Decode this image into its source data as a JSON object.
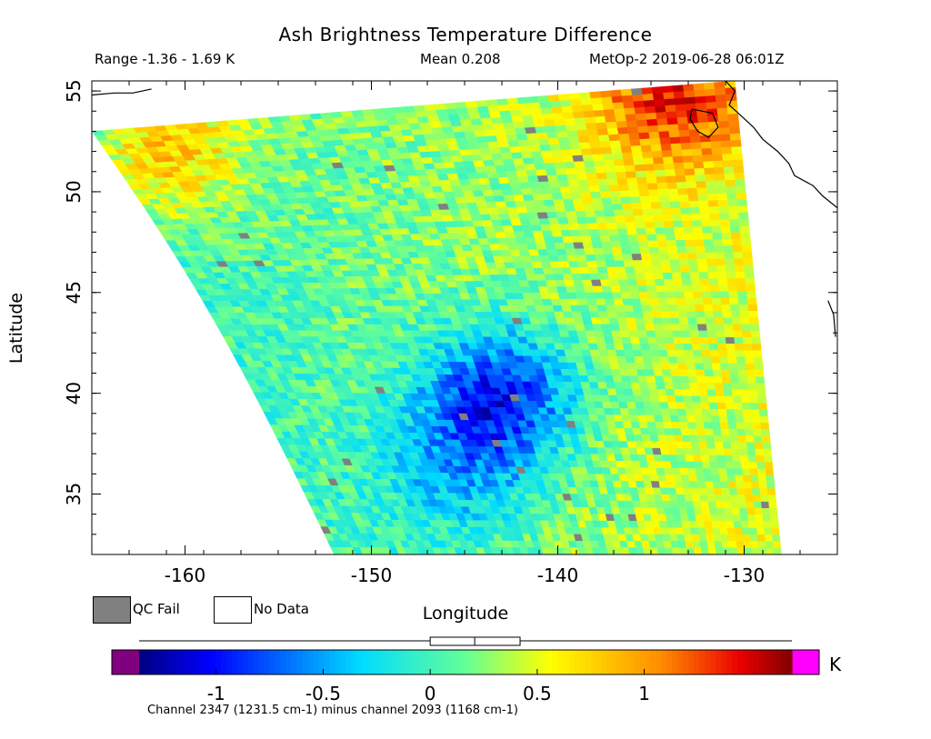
{
  "header": {
    "title": "Ash Brightness Temperature Difference",
    "range_text": "Range -1.36 - 1.69 K",
    "mean_text": "Mean 0.208",
    "stamp_text": "MetOp-2 2019-06-28 06:01Z"
  },
  "legend": {
    "qc_fail_label": "QC Fail",
    "no_data_label": "No Data",
    "qc_fail_color": "#808080",
    "no_data_color": "#ffffff"
  },
  "colorbar": {
    "unit": "K",
    "tick_labels": [
      "-1",
      "-0.5",
      "0",
      "0.5",
      "1"
    ],
    "tick_values": [
      -1,
      -0.5,
      0,
      0.5,
      1
    ],
    "vmin": -1.36,
    "vmax": 1.69,
    "underflow_color": "#800080",
    "overflow_color": "#ff00ff",
    "boxplot": {
      "min": -1.36,
      "q1": 0.0,
      "median": 0.208,
      "q3": 0.42,
      "max": 1.69
    },
    "caption": "Channel 2347 (1231.5 cm-1) minus channel 2093 (1168 cm-1)"
  },
  "chart_data": {
    "type": "heatmap",
    "title": "Ash Brightness Temperature Difference",
    "xlabel": "Longitude",
    "ylabel": "Latitude",
    "xlim": [
      -165,
      -125
    ],
    "ylim": [
      32,
      55.5
    ],
    "x_ticks": [
      -160,
      -150,
      -140,
      -130
    ],
    "y_ticks": [
      35,
      40,
      45,
      50,
      55
    ],
    "x_tick_labels": [
      "-160",
      "-150",
      "-140",
      "-130"
    ],
    "y_tick_labels": [
      "35",
      "40",
      "45",
      "50",
      "55"
    ],
    "value_unit": "K",
    "range": [
      -1.36,
      1.69
    ],
    "mean": 0.208,
    "swath_corners": {
      "northwest": [
        -165,
        53
      ],
      "southwest": [
        -152,
        32
      ],
      "southeast": [
        -128,
        32
      ],
      "northeast": [
        -130.5,
        55.5
      ]
    },
    "regions": [
      {
        "description_lon_lat": [
          -161,
          52
        ],
        "value": 1.0
      },
      {
        "description_lon_lat": [
          -134,
          54.5
        ],
        "value": 1.2
      },
      {
        "description_lon_lat": [
          -143,
          40
        ],
        "value": -0.9
      },
      {
        "description_lon_lat": [
          -145,
          36
        ],
        "value": -0.3
      }
    ]
  }
}
